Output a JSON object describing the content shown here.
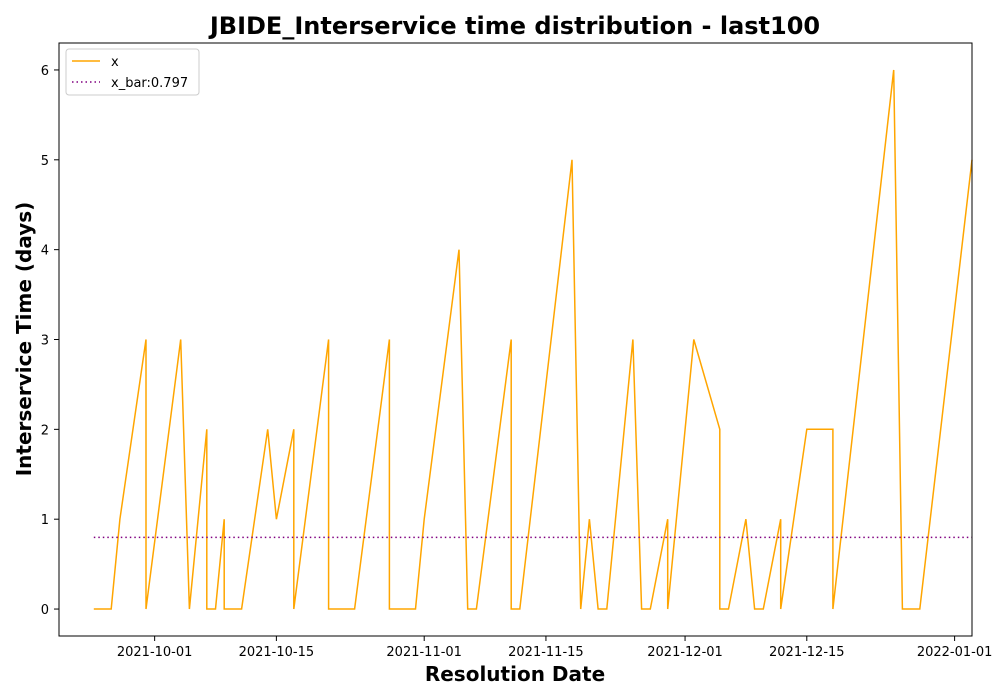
{
  "chart_data": {
    "type": "line",
    "title": "JBIDE_Interservice time distribution - last100",
    "xlabel": "Resolution Date",
    "ylabel": "Interservice Time (days)",
    "xlim": [
      "2021-09-20",
      "2022-01-03"
    ],
    "ylim": [
      -0.3,
      6.3
    ],
    "x_ticks": [
      "2021-10-01",
      "2021-10-15",
      "2021-11-01",
      "2021-11-15",
      "2021-12-01",
      "2021-12-15",
      "2022-01-01"
    ],
    "y_ticks": [
      0,
      1,
      2,
      3,
      4,
      5,
      6
    ],
    "grid": false,
    "legend_position": "top-left",
    "series": [
      {
        "name": "x",
        "color": "#FFA500",
        "style": "solid",
        "points": [
          [
            "2021-09-24",
            0
          ],
          [
            "2021-09-26",
            0
          ],
          [
            "2021-09-27",
            1
          ],
          [
            "2021-09-30",
            3
          ],
          [
            "2021-09-30",
            0
          ],
          [
            "2021-10-04",
            3
          ],
          [
            "2021-10-05",
            0
          ],
          [
            "2021-10-07",
            2
          ],
          [
            "2021-10-07",
            0
          ],
          [
            "2021-10-08",
            0
          ],
          [
            "2021-10-09",
            1
          ],
          [
            "2021-10-09",
            0
          ],
          [
            "2021-10-11",
            0
          ],
          [
            "2021-10-14",
            2
          ],
          [
            "2021-10-15",
            1
          ],
          [
            "2021-10-17",
            2
          ],
          [
            "2021-10-17",
            0
          ],
          [
            "2021-10-21",
            3
          ],
          [
            "2021-10-21",
            0
          ],
          [
            "2021-10-24",
            0
          ],
          [
            "2021-10-28",
            3
          ],
          [
            "2021-10-28",
            0
          ],
          [
            "2021-10-31",
            0
          ],
          [
            "2021-11-01",
            1
          ],
          [
            "2021-11-05",
            4
          ],
          [
            "2021-11-06",
            0
          ],
          [
            "2021-11-07",
            0
          ],
          [
            "2021-11-11",
            3
          ],
          [
            "2021-11-11",
            0
          ],
          [
            "2021-11-12",
            0
          ],
          [
            "2021-11-18",
            5
          ],
          [
            "2021-11-19",
            0
          ],
          [
            "2021-11-20",
            1
          ],
          [
            "2021-11-21",
            0
          ],
          [
            "2021-11-22",
            0
          ],
          [
            "2021-11-25",
            3
          ],
          [
            "2021-11-26",
            0
          ],
          [
            "2021-11-27",
            0
          ],
          [
            "2021-11-29",
            1
          ],
          [
            "2021-11-29",
            0
          ],
          [
            "2021-12-02",
            3
          ],
          [
            "2021-12-05",
            2
          ],
          [
            "2021-12-05",
            0
          ],
          [
            "2021-12-06",
            0
          ],
          [
            "2021-12-08",
            1
          ],
          [
            "2021-12-09",
            0
          ],
          [
            "2021-12-10",
            0
          ],
          [
            "2021-12-12",
            1
          ],
          [
            "2021-12-12",
            0
          ],
          [
            "2021-12-15",
            2
          ],
          [
            "2021-12-18",
            2
          ],
          [
            "2021-12-18",
            0
          ],
          [
            "2021-12-25",
            6
          ],
          [
            "2021-12-26",
            0
          ],
          [
            "2021-12-28",
            0
          ],
          [
            "2022-01-03",
            5
          ]
        ]
      },
      {
        "name": "x_bar:0.797",
        "color": "#800080",
        "style": "dotted",
        "points": [
          [
            "2021-09-24",
            0.797
          ],
          [
            "2022-01-03",
            0.797
          ]
        ]
      }
    ]
  }
}
